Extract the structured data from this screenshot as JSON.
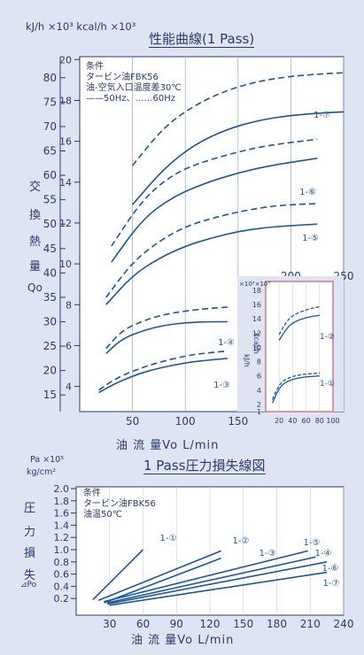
{
  "chart_data": [
    {
      "type": "line",
      "title": "性能曲線(1 Pass)",
      "y_unit_left": "kJ/h ×10³",
      "y_unit_right": "kcal/h ×10³",
      "ylabel_chars": [
        "交",
        "換",
        "熱",
        "量",
        "Qo"
      ],
      "xlabel": "油 流 量Vo L/min",
      "x_ticks": [
        "50",
        "100",
        "150"
      ],
      "x_ticks_top": [
        "200",
        "250"
      ],
      "kj_ticks": [
        "15",
        "20",
        "25",
        "30",
        "35",
        "40",
        "45",
        "50",
        "55",
        "60",
        "65",
        "70",
        "75",
        "80"
      ],
      "kcal_ticks": [
        "4",
        "6",
        "8",
        "10",
        "12",
        "14",
        "16",
        "18",
        "20"
      ],
      "legend": {
        "heading": "条件",
        "line1": "タービン油FBK56",
        "line2": "油-空気入口温度差30℃",
        "line3": "——50Hz、……60Hz"
      },
      "series": [
        {
          "name": "1-⑦",
          "hz": "50Hz",
          "x": [
            50,
            80,
            110,
            140,
            170,
            200,
            230,
            250
          ],
          "y": [
            54,
            61.5,
            66.5,
            69.5,
            71.3,
            72.3,
            72.8,
            73
          ]
        },
        {
          "name": "1-⑦",
          "hz": "60Hz",
          "x": [
            50,
            80,
            110,
            140,
            170,
            200,
            230,
            250
          ],
          "y": [
            62,
            70,
            74.5,
            77.5,
            79.3,
            80.3,
            80.8,
            81
          ]
        },
        {
          "name": "1-⑥",
          "hz": "50Hz",
          "x": [
            30,
            60,
            90,
            120,
            150,
            180,
            225
          ],
          "y": [
            42.2,
            51.2,
            55.8,
            58.5,
            60.5,
            62,
            63.5
          ]
        },
        {
          "name": "1-⑥",
          "hz": "60Hz",
          "x": [
            30,
            60,
            90,
            120,
            150,
            180,
            225
          ],
          "y": [
            45.5,
            55.2,
            60.5,
            63,
            64.8,
            66.2,
            67.4
          ]
        },
        {
          "name": "1-⑤",
          "hz": "50Hz",
          "x": [
            25,
            50,
            75,
            100,
            125,
            150,
            175,
            200,
            225
          ],
          "y": [
            33.5,
            39.5,
            43,
            45.5,
            47.2,
            48.5,
            49.3,
            49.7,
            50
          ]
        },
        {
          "name": "1-⑤",
          "hz": "60Hz",
          "x": [
            25,
            50,
            75,
            100,
            125,
            150,
            175,
            200,
            225
          ],
          "y": [
            35,
            42.2,
            46.5,
            49.5,
            51.2,
            52.5,
            53.5,
            54,
            54.2
          ]
        },
        {
          "name": "1-④",
          "hz": "50Hz",
          "x": [
            25,
            40,
            60,
            80,
            100,
            120,
            140
          ],
          "y": [
            23.5,
            26.5,
            28.2,
            29.3,
            29.8,
            30,
            30
          ]
        },
        {
          "name": "1-④",
          "hz": "60Hz",
          "x": [
            25,
            40,
            60,
            80,
            100,
            120,
            140
          ],
          "y": [
            24.5,
            28.2,
            30.2,
            31.5,
            32.2,
            32.7,
            33
          ]
        },
        {
          "name": "1-③",
          "hz": "50Hz",
          "x": [
            18,
            35,
            55,
            75,
            100,
            120,
            140
          ],
          "y": [
            15.5,
            17.5,
            19.3,
            20.5,
            21.6,
            22.1,
            22.5
          ]
        },
        {
          "name": "1-③",
          "hz": "60Hz",
          "x": [
            18,
            35,
            55,
            75,
            100,
            120,
            140
          ],
          "y": [
            16,
            18.5,
            20.3,
            21.7,
            23,
            23.6,
            24
          ]
        }
      ],
      "inset": {
        "type": "line",
        "unit": "×10³×10³",
        "ylabel_left": "kJ/h",
        "ylabel_right": "kcal/h",
        "x_ticks": [
          "20",
          "40",
          "60",
          "80",
          "100"
        ],
        "kcal_ticks": [
          "1",
          "2",
          "4",
          "6",
          "8",
          "10",
          "12",
          "14",
          "16",
          "18"
        ],
        "series": [
          {
            "name": "1-②",
            "hz": "50Hz",
            "x": [
              20,
              30,
              40,
              60,
              80
            ],
            "y": [
              11,
              12.5,
              13.5,
              14.2,
              14.5
            ]
          },
          {
            "name": "1-②",
            "hz": "60Hz",
            "x": [
              20,
              30,
              40,
              60,
              80
            ],
            "y": [
              11.8,
              13.5,
              14.5,
              15.3,
              15.7
            ]
          },
          {
            "name": "1-①",
            "hz": "50Hz",
            "x": [
              10,
              20,
              30,
              50,
              80
            ],
            "y": [
              2.2,
              4.3,
              5.2,
              5.8,
              6
            ]
          },
          {
            "name": "1-①",
            "hz": "60Hz",
            "x": [
              10,
              20,
              30,
              50,
              80
            ],
            "y": [
              2.7,
              4.8,
              5.6,
              6.2,
              6.4
            ]
          }
        ]
      }
    },
    {
      "type": "line",
      "title": "1 Pass圧力損失線図",
      "y_unit": "Pa ×10⁵",
      "y_unit2": "kg/cm²",
      "ylabel_chars": [
        "圧",
        "力",
        "損",
        "失",
        "⊿Po"
      ],
      "xlabel": "油 流 量Vo L/min",
      "x_ticks": [
        "30",
        "60",
        "90",
        "120",
        "150",
        "180",
        "210",
        "240"
      ],
      "y_ticks": [
        "0.2",
        "0.4",
        "0.6",
        "0.8",
        "1.0",
        "1.2",
        "1.4",
        "1.6",
        "1.8",
        "2.0"
      ],
      "legend": {
        "heading": "条件",
        "line1": "タービン油FBK56",
        "line2": "油温50℃"
      },
      "series": [
        {
          "name": "1-①",
          "x": [
            15,
            60
          ],
          "y": [
            0.18,
            1.0
          ]
        },
        {
          "name": "1-②",
          "x": [
            20,
            130
          ],
          "y": [
            0.17,
            0.98
          ]
        },
        {
          "name": "1-③",
          "x": [
            25,
            130
          ],
          "y": [
            0.13,
            0.86
          ]
        },
        {
          "name": "1-⑤",
          "x": [
            25,
            208
          ],
          "y": [
            0.15,
            0.98
          ]
        },
        {
          "name": "1-④",
          "x": [
            28,
            215
          ],
          "y": [
            0.13,
            0.88
          ]
        },
        {
          "name": "1-⑥",
          "x": [
            28,
            225
          ],
          "y": [
            0.11,
            0.8
          ]
        },
        {
          "name": "1-⑦",
          "x": [
            30,
            225
          ],
          "y": [
            0.09,
            0.63
          ]
        }
      ]
    }
  ]
}
